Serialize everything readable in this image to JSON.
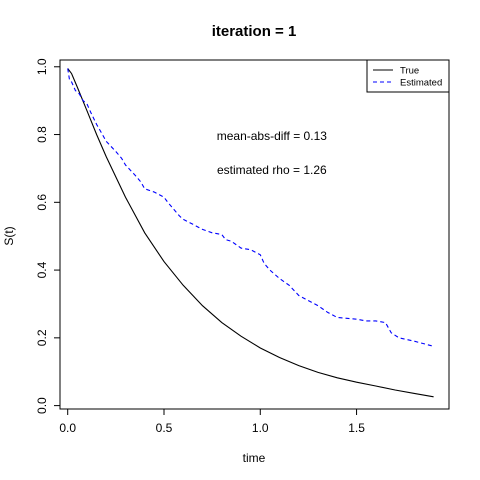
{
  "chart_data": {
    "type": "line",
    "title": "iteration =  1",
    "xlabel": "time",
    "ylabel": "S(t)",
    "xlim": [
      -0.04,
      1.98
    ],
    "ylim": [
      -0.01,
      1.02
    ],
    "xticks": [
      0.0,
      0.5,
      1.0,
      1.5
    ],
    "xtick_labels": [
      "0.0",
      "0.5",
      "1.0",
      "1.5"
    ],
    "yticks": [
      0.0,
      0.2,
      0.4,
      0.6,
      0.8,
      1.0
    ],
    "ytick_labels": [
      "0.0",
      "0.2",
      "0.4",
      "0.6",
      "0.8",
      "1.0"
    ],
    "grid": false,
    "legend": {
      "position": "top-right",
      "entries": [
        {
          "name": "True",
          "color": "#000000",
          "dash": "solid"
        },
        {
          "name": "Estimated",
          "color": "#0000ff",
          "dash": "dashed"
        }
      ]
    },
    "annotations": [
      {
        "text": "mean-abs-diff =  0.13",
        "x": 1.06,
        "y": 0.795
      },
      {
        "text": "estimated rho =  1.26",
        "x": 1.06,
        "y": 0.695
      }
    ],
    "series": [
      {
        "name": "True",
        "color": "#000000",
        "dash": "solid",
        "x": [
          0.0,
          0.02,
          0.05,
          0.1,
          0.15,
          0.2,
          0.3,
          0.4,
          0.5,
          0.6,
          0.7,
          0.8,
          0.9,
          1.0,
          1.1,
          1.2,
          1.3,
          1.4,
          1.5,
          1.6,
          1.7,
          1.8,
          1.9
        ],
        "y": [
          0.995,
          0.98,
          0.94,
          0.87,
          0.8,
          0.735,
          0.615,
          0.51,
          0.425,
          0.355,
          0.295,
          0.245,
          0.205,
          0.17,
          0.142,
          0.118,
          0.098,
          0.082,
          0.069,
          0.058,
          0.046,
          0.036,
          0.026
        ]
      },
      {
        "name": "Estimated",
        "color": "#0000ff",
        "dash": "dashed",
        "x": [
          0.0,
          0.01,
          0.02,
          0.04,
          0.06,
          0.08,
          0.1,
          0.12,
          0.15,
          0.18,
          0.2,
          0.25,
          0.28,
          0.3,
          0.35,
          0.38,
          0.4,
          0.45,
          0.5,
          0.52,
          0.55,
          0.58,
          0.6,
          0.65,
          0.7,
          0.75,
          0.8,
          0.82,
          0.85,
          0.9,
          0.95,
          1.0,
          1.02,
          1.05,
          1.1,
          1.15,
          1.2,
          1.25,
          1.3,
          1.35,
          1.4,
          1.5,
          1.55,
          1.6,
          1.65,
          1.68,
          1.72,
          1.8,
          1.9
        ],
        "y": [
          0.995,
          0.96,
          0.955,
          0.93,
          0.92,
          0.9,
          0.89,
          0.865,
          0.83,
          0.8,
          0.78,
          0.75,
          0.73,
          0.71,
          0.68,
          0.66,
          0.64,
          0.63,
          0.615,
          0.6,
          0.58,
          0.56,
          0.55,
          0.535,
          0.52,
          0.51,
          0.505,
          0.49,
          0.485,
          0.465,
          0.46,
          0.445,
          0.42,
          0.4,
          0.375,
          0.355,
          0.325,
          0.31,
          0.295,
          0.275,
          0.26,
          0.255,
          0.25,
          0.25,
          0.245,
          0.215,
          0.2,
          0.19,
          0.175
        ]
      }
    ]
  }
}
